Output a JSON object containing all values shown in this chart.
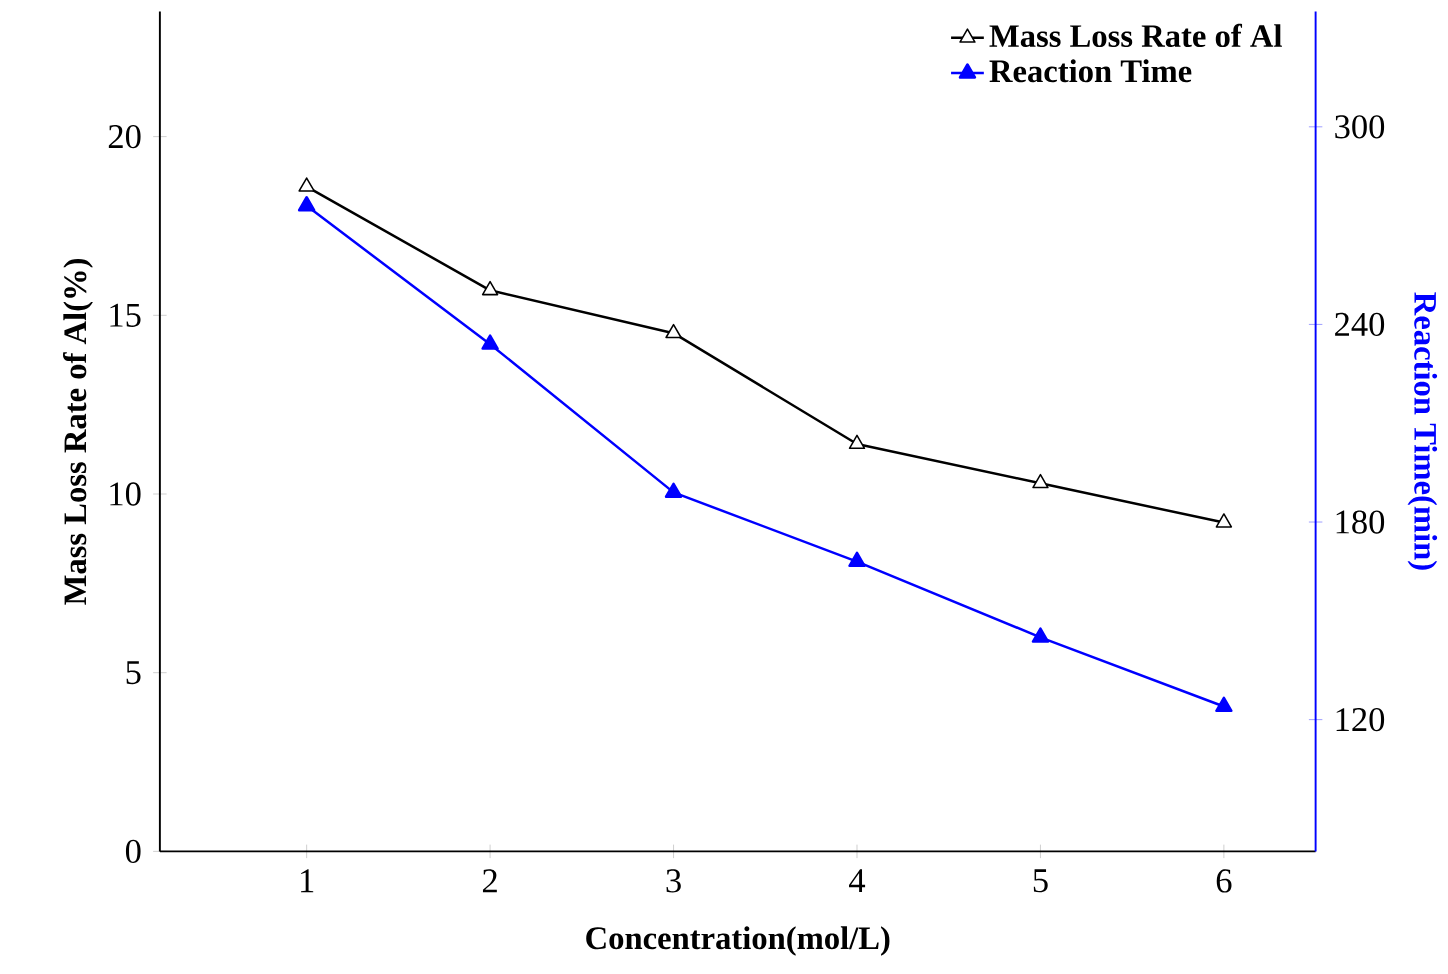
{
  "chart_data": {
    "type": "line",
    "xlabel": "Concentration(mol/L)",
    "ylabel": "Mass Loss Rate of Al(%)",
    "y2label": "Reaction Time(min)",
    "x": [
      1,
      2,
      3,
      4,
      5,
      6
    ],
    "xlim": [
      0.2,
      6.5
    ],
    "xticks": [
      1,
      2,
      3,
      4,
      5,
      6
    ],
    "ylim": [
      0,
      23.5
    ],
    "yticks": [
      0,
      5,
      10,
      15,
      20
    ],
    "y2lim": [
      80,
      335
    ],
    "y2ticks": [
      120,
      180,
      240,
      300
    ],
    "series": [
      {
        "name": "Mass Loss Rate of Al",
        "color": "#000000",
        "values": [
          18.6,
          15.7,
          14.5,
          11.4,
          10.3,
          9.2
        ]
      },
      {
        "name": "Reaction Time",
        "color": "#0000ff",
        "axis": "y2",
        "values": [
          276,
          234,
          189,
          168,
          145,
          124
        ]
      }
    ],
    "marker": "triangle",
    "line_style": "solid",
    "legend": "top right",
    "grid": false
  }
}
